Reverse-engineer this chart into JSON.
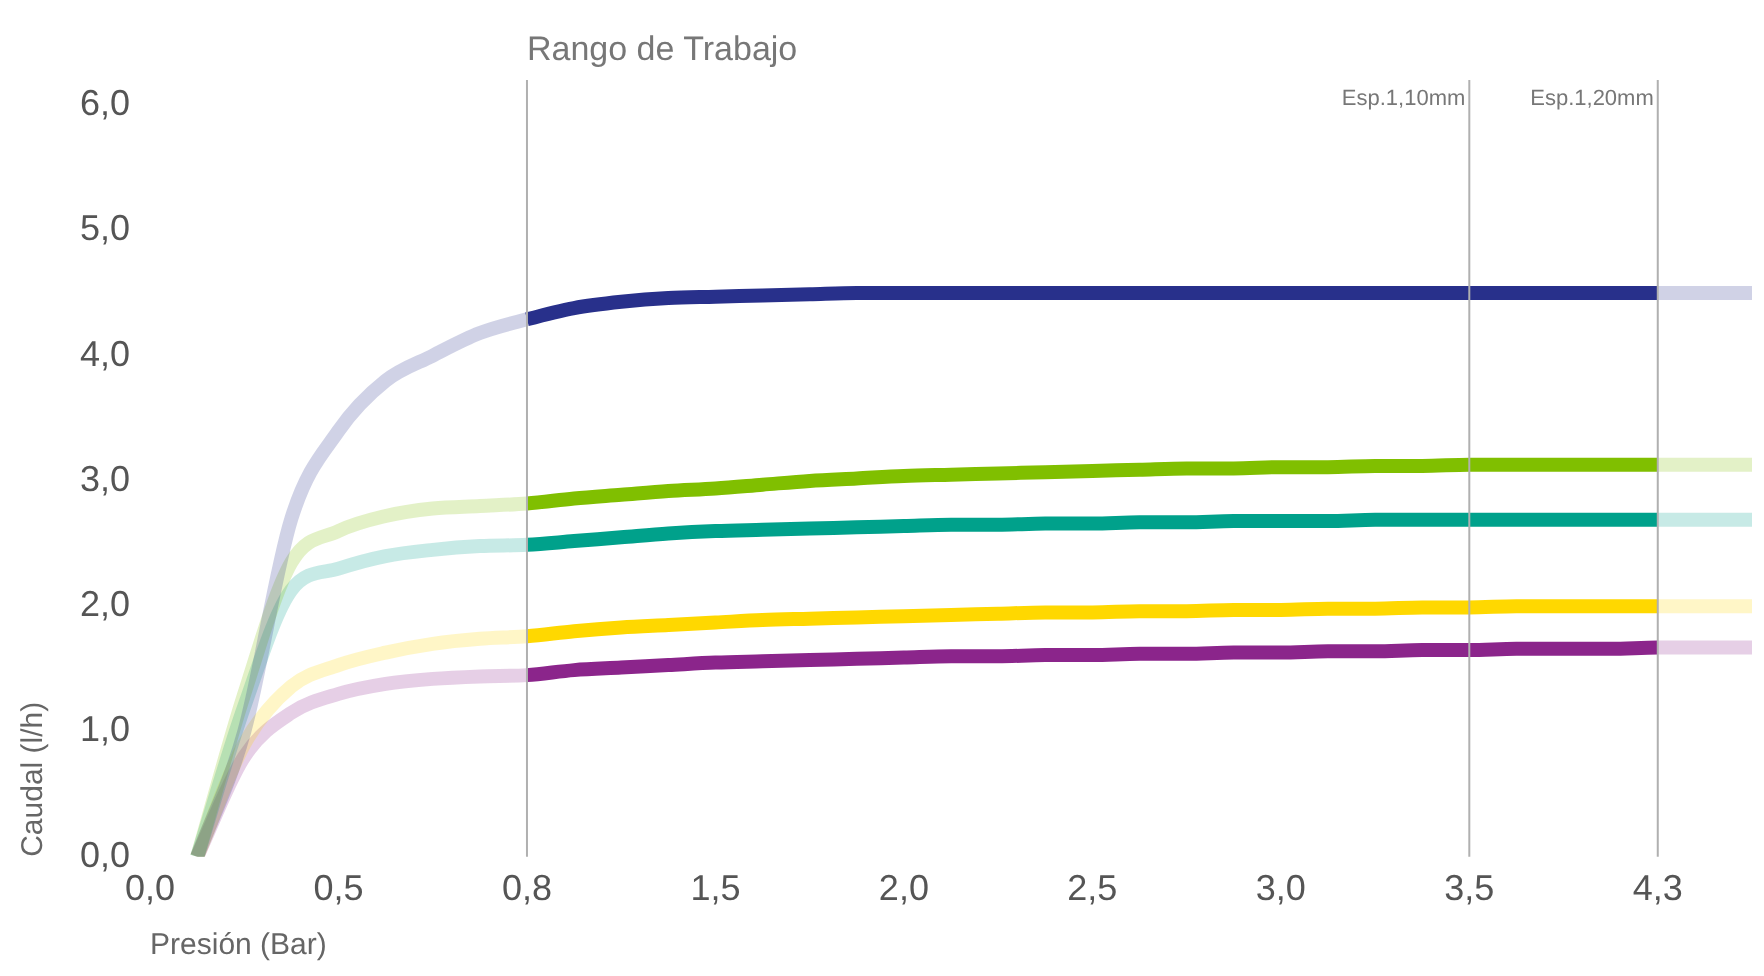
{
  "chart_data": {
    "type": "line",
    "xlabel": "Presión (Bar)",
    "ylabel": "Caudal (l/h)",
    "categories": [
      "0,0",
      null,
      null,
      null,
      "0,5",
      null,
      null,
      null,
      "0,8",
      null,
      null,
      null,
      "1,5",
      null,
      null,
      null,
      "2,0",
      null,
      null,
      null,
      "2,5",
      null,
      null,
      null,
      "3,0",
      null,
      null,
      null,
      "3,5",
      null,
      null,
      null,
      "4,3",
      null,
      null
    ],
    "series": [
      {
        "color": "#28308b",
        "values": [
          null,
          0,
          1.0,
          2.7,
          3.4,
          3.8,
          4.0,
          4.18,
          4.29,
          4.38,
          4.43,
          4.46,
          4.47,
          4.48,
          4.49,
          4.5,
          4.5,
          4.5,
          4.5,
          4.5,
          4.5,
          4.5,
          4.5,
          4.5,
          4.5,
          4.5,
          4.5,
          4.5,
          4.5,
          4.5,
          4.5,
          4.5,
          4.5,
          4.5,
          4.5
        ]
      },
      {
        "color": "#80bf00",
        "values": [
          null,
          0,
          1.3,
          2.35,
          2.6,
          2.72,
          2.78,
          2.8,
          2.82,
          2.86,
          2.89,
          2.92,
          2.94,
          2.97,
          3.0,
          3.02,
          3.04,
          3.05,
          3.06,
          3.07,
          3.08,
          3.09,
          3.1,
          3.1,
          3.11,
          3.11,
          3.12,
          3.12,
          3.13,
          3.13,
          3.13,
          3.13,
          3.13,
          3.13,
          3.13
        ]
      },
      {
        "color": "#00a18b",
        "values": [
          null,
          0,
          1.2,
          2.13,
          2.3,
          2.4,
          2.45,
          2.48,
          2.49,
          2.52,
          2.55,
          2.58,
          2.6,
          2.61,
          2.62,
          2.63,
          2.64,
          2.65,
          2.65,
          2.66,
          2.66,
          2.67,
          2.67,
          2.68,
          2.68,
          2.68,
          2.69,
          2.69,
          2.69,
          2.69,
          2.69,
          2.69,
          2.69,
          2.69,
          2.69
        ]
      },
      {
        "color": "#ffd800",
        "values": [
          null,
          0,
          0.9,
          1.36,
          1.53,
          1.63,
          1.7,
          1.74,
          1.76,
          1.8,
          1.83,
          1.85,
          1.87,
          1.89,
          1.9,
          1.91,
          1.92,
          1.93,
          1.94,
          1.95,
          1.95,
          1.96,
          1.96,
          1.97,
          1.97,
          1.98,
          1.98,
          1.99,
          1.99,
          2.0,
          2.0,
          2.0,
          2.0,
          2.0,
          2.0
        ]
      },
      {
        "color": "#8b258b",
        "values": [
          null,
          0,
          0.8,
          1.15,
          1.3,
          1.38,
          1.42,
          1.44,
          1.45,
          1.49,
          1.51,
          1.53,
          1.55,
          1.56,
          1.57,
          1.58,
          1.59,
          1.6,
          1.6,
          1.61,
          1.61,
          1.62,
          1.62,
          1.63,
          1.63,
          1.64,
          1.64,
          1.65,
          1.65,
          1.66,
          1.66,
          1.66,
          1.67,
          1.67,
          1.67
        ]
      }
    ],
    "ylim": [
      0,
      6.2
    ],
    "yticks": [
      {
        "value": 0,
        "label": "0,0"
      },
      {
        "value": 1,
        "label": "1,0"
      },
      {
        "value": 2,
        "label": "2,0"
      },
      {
        "value": 3,
        "label": "3,0"
      },
      {
        "value": 4,
        "label": "4,0"
      },
      {
        "value": 5,
        "label": "5,0"
      },
      {
        "value": 6,
        "label": "6,0"
      }
    ],
    "ref_lines": [
      {
        "axis": "x",
        "value": "0,8",
        "label": "Rango de Trabajo",
        "color": "#b0b0b0"
      },
      {
        "axis": "x",
        "value": "3,5",
        "label": "Esp.1,10mm",
        "color": "#b0b0b0"
      },
      {
        "axis": "x",
        "value": "4,3",
        "label": "Esp.1,20mm",
        "color": "#b0b0b0"
      }
    ],
    "grid": false,
    "legend": false,
    "marker": "none",
    "line_style": "solid"
  }
}
